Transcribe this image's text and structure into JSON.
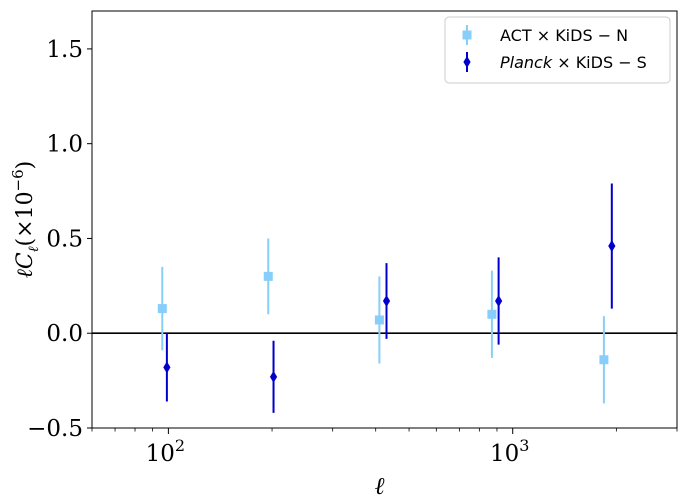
{
  "chart_data": {
    "type": "scatter",
    "x_scale": "log",
    "xlim": [
      60,
      3000
    ],
    "ylim": [
      -0.5,
      1.7
    ],
    "xlabel": "ℓ",
    "ylabel_main": "ℓC",
    "ylabel_sub": "ℓ",
    "ylabel_tail": "(×10",
    "ylabel_exp": "−6",
    "ylabel_close": ")",
    "y_ticks": [
      {
        "value": -0.5,
        "label": "−0.5"
      },
      {
        "value": 0.0,
        "label": "0.0"
      },
      {
        "value": 0.5,
        "label": "0.5"
      },
      {
        "value": 1.0,
        "label": "1.0"
      },
      {
        "value": 1.5,
        "label": "1.5"
      }
    ],
    "x_ticks": [
      {
        "value": 100,
        "base": "10",
        "exp": "2"
      },
      {
        "value": 1000,
        "base": "10",
        "exp": "3"
      }
    ],
    "reference_line_y": 0,
    "legend_position": "upper right",
    "series": [
      {
        "name": "ACT × KiDS − N",
        "name_italic": "",
        "name_rest": "ACT × KiDS − N",
        "color": "#87CEFA",
        "marker": "square",
        "x": [
          96,
          195,
          410,
          870,
          1840
        ],
        "y": [
          0.13,
          0.3,
          0.07,
          0.1,
          -0.14
        ],
        "err": [
          0.22,
          0.2,
          0.23,
          0.23,
          0.23
        ]
      },
      {
        "name": "Planck × KiDS − S",
        "name_italic": "Planck",
        "name_rest": " × KiDS − S",
        "color": "#0000CD",
        "marker": "diamond",
        "x": [
          99,
          202,
          430,
          910,
          1940
        ],
        "y": [
          -0.18,
          -0.23,
          0.17,
          0.17,
          0.46
        ],
        "err": [
          0.18,
          0.19,
          0.2,
          0.23,
          0.33
        ]
      }
    ]
  }
}
